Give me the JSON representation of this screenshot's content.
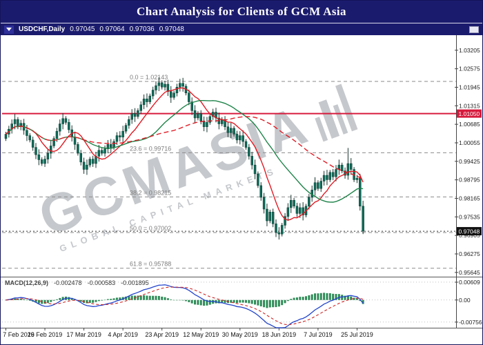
{
  "title": "Chart Analysis for Clients of GCM Asia",
  "header": {
    "symbol": "USDCHF,Daily",
    "open": "0.97045",
    "high": "0.97064",
    "low": "0.97036",
    "close": "0.97048"
  },
  "watermark": {
    "text": "GCMASIA",
    "subtext": "GLOBAL CAPITAL MARKETS"
  },
  "colors": {
    "titlebar_bg": "#1b1b6e",
    "chart_bg": "#ffffff",
    "candle_body": "#0f6a58",
    "candle_border": "#0a3f34",
    "wick": "#15332c",
    "red_line": "#d61a3c",
    "ma_fast": "#e01b24",
    "ma_slow": "#1d8348",
    "macd_line": "#2244cc",
    "macd_signal": "#cc2222",
    "histogram": "#2e8b57",
    "current_price_bg": "#111111",
    "fib": "#8a8a8a"
  },
  "chart_data": {
    "type": "candlestick",
    "title": "USDCHF Daily with Fibonacci retracement, 1.01050 horizontal line, 3 moving averages and MACD(12,26,9)",
    "symbol": "USDCHF",
    "timeframe": "Daily",
    "price_range": {
      "top": 1.0367,
      "bottom": 0.955
    },
    "open_first": 1.002,
    "closes": [
      1.0035,
      1.0052,
      1.007,
      1.0085,
      1.006,
      1.0072,
      1.0048,
      1.003,
      1.0015,
      0.999,
      0.9965,
      0.9948,
      0.9935,
      0.995,
      0.997,
      0.9995,
      1.002,
      1.0045,
      1.007,
      1.0088,
      1.0075,
      1.005,
      1.0025,
      1.0,
      0.997,
      0.994,
      0.9915,
      0.993,
      0.995,
      0.9935,
      0.996,
      0.998,
      0.997,
      0.9985,
      1.0,
      0.999,
      1.001,
      1.003,
      1.0025,
      1.0045,
      1.0065,
      1.0085,
      1.0105,
      1.0095,
      1.0115,
      1.0135,
      1.0155,
      1.0145,
      1.0165,
      1.0185,
      1.02,
      1.021,
      1.0195,
      1.0205,
      1.018,
      1.016,
      1.0175,
      1.0195,
      1.0208,
      1.0198,
      1.0175,
      1.0145,
      1.0115,
      1.009,
      1.0105,
      1.008,
      1.006,
      1.0075,
      1.0095,
      1.011,
      1.009,
      1.007,
      1.0085,
      1.006,
      1.004,
      1.0055,
      1.0035,
      1.0015,
      1.003,
      1.001,
      0.999,
      0.996,
      0.993,
      0.99,
      0.986,
      0.982,
      0.978,
      0.974,
      0.977,
      0.973,
      0.97,
      0.9695,
      0.9725,
      0.9755,
      0.9785,
      0.981,
      0.979,
      0.9765,
      0.9785,
      0.976,
      0.979,
      0.982,
      0.9845,
      0.987,
      0.985,
      0.9875,
      0.9895,
      0.988,
      0.9905,
      0.989,
      0.9915,
      0.993,
      0.991,
      0.9895,
      0.9935,
      0.9915,
      0.988,
      0.9885,
      0.979,
      0.97048
    ],
    "x_labels": [
      "7 Feb 2019",
      "26 Feb 2019",
      "17 Mar 2019",
      "4 Apr 2019",
      "23 Apr 2019",
      "12 May 2019",
      "30 May 2019",
      "18 Jun 2019",
      "7 Jul 2019",
      "25 Jul 2019"
    ],
    "x_label_bar_indices": [
      0,
      13,
      26,
      39,
      52,
      65,
      78,
      91,
      104,
      117
    ],
    "price_axis_ticks": [
      "1.03205",
      "1.02575",
      "1.01945",
      "1.01315",
      "1.00685",
      "1.00055",
      "0.99425",
      "0.98795",
      "0.98165",
      "0.97535",
      "0.96905",
      "0.96275",
      "0.95645"
    ],
    "fib_levels": [
      {
        "text": "0.0 = 1.02143",
        "price": 1.02143
      },
      {
        "text": "23.6 = 0.99716",
        "price": 0.99716
      },
      {
        "text": "38.2 = 0.98215",
        "price": 0.98215
      },
      {
        "text": "50.0 = 0.97002",
        "price": 0.97002
      },
      {
        "text": "61.8 = 0.95788",
        "price": 0.95788
      }
    ],
    "red_line": {
      "price": 1.0105,
      "label": "1.01050"
    },
    "current_price": {
      "price": 0.97048,
      "label": "0.97048"
    },
    "moving_averages": [
      {
        "period": 9,
        "style": "solid",
        "color": "#e01b24"
      },
      {
        "period": 26,
        "style": "solid",
        "color": "#1d8348"
      },
      {
        "period": 50,
        "style": "dashed",
        "color": "#e01b24"
      }
    ],
    "macd": {
      "label": "MACD(12,26,9)",
      "value_main": "-0.002478",
      "value_signal": "-0.000583",
      "value_hist": "-0.001895",
      "params": [
        12,
        26,
        9
      ],
      "range": {
        "top": 0.0075,
        "bottom": -0.0095
      },
      "axis_ticks": [
        {
          "label": "0.00609",
          "value": 0.00609
        },
        {
          "label": "0.00",
          "value": 0
        },
        {
          "label": "-0.00756",
          "value": -0.00756
        }
      ]
    }
  }
}
